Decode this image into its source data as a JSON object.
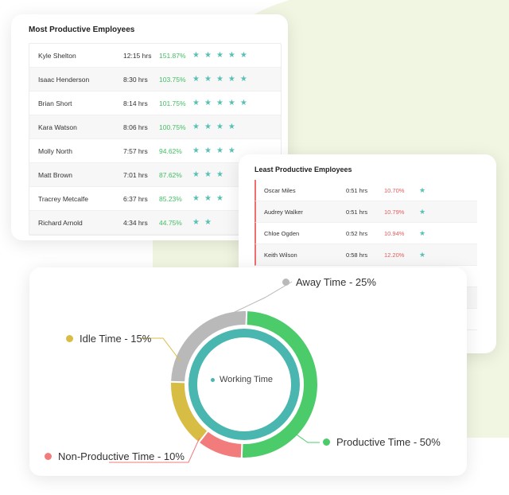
{
  "most_productive": {
    "title": "Most Productive Employees",
    "rows": [
      {
        "name": "Kyle Shelton",
        "hours": "12:15 hrs",
        "percent": "151.87%",
        "stars": 5
      },
      {
        "name": "Isaac Henderson",
        "hours": "8:30 hrs",
        "percent": "103.75%",
        "stars": 5
      },
      {
        "name": "Brian Short",
        "hours": "8:14 hrs",
        "percent": "101.75%",
        "stars": 5
      },
      {
        "name": "Kara Watson",
        "hours": "8:06 hrs",
        "percent": "100.75%",
        "stars": 4
      },
      {
        "name": "Molly North",
        "hours": "7:57 hrs",
        "percent": "94.62%",
        "stars": 4
      },
      {
        "name": "Matt Brown",
        "hours": "7:01 hrs",
        "percent": "87.62%",
        "stars": 3
      },
      {
        "name": "Tracrey Metcalfe",
        "hours": "6:37 hrs",
        "percent": "85.23%",
        "stars": 3
      },
      {
        "name": "Richard Arnold",
        "hours": "4:34 hrs",
        "percent": "44.75%",
        "stars": 2
      }
    ]
  },
  "least_productive": {
    "title": "Least Productive Employees",
    "rows": [
      {
        "name": "Oscar Miles",
        "hours": "0:51 hrs",
        "percent": "10.70%",
        "stars": 1
      },
      {
        "name": "Audrey Walker",
        "hours": "0:51 hrs",
        "percent": "10.79%",
        "stars": 1
      },
      {
        "name": "Chloe Ogden",
        "hours": "0:52 hrs",
        "percent": "10.94%",
        "stars": 1
      },
      {
        "name": "Keith Wilson",
        "hours": "0:58 hrs",
        "percent": "12.20%",
        "stars": 1
      }
    ]
  },
  "time_chart": {
    "center_label": "Working Time",
    "segments": [
      {
        "label": "Productive Time - 50%",
        "value": 50,
        "color": "#4ccb6a"
      },
      {
        "label": "Non-Productive Time - 10%",
        "value": 10,
        "color": "#f27b7b"
      },
      {
        "label": "Idle Time - 15%",
        "value": 15,
        "color": "#d8bd45"
      },
      {
        "label": "Away Time - 25%",
        "value": 25,
        "color": "#b9b9b9"
      }
    ],
    "inner_color": "#4ab6b0",
    "star_color": "#55c2b4"
  }
}
